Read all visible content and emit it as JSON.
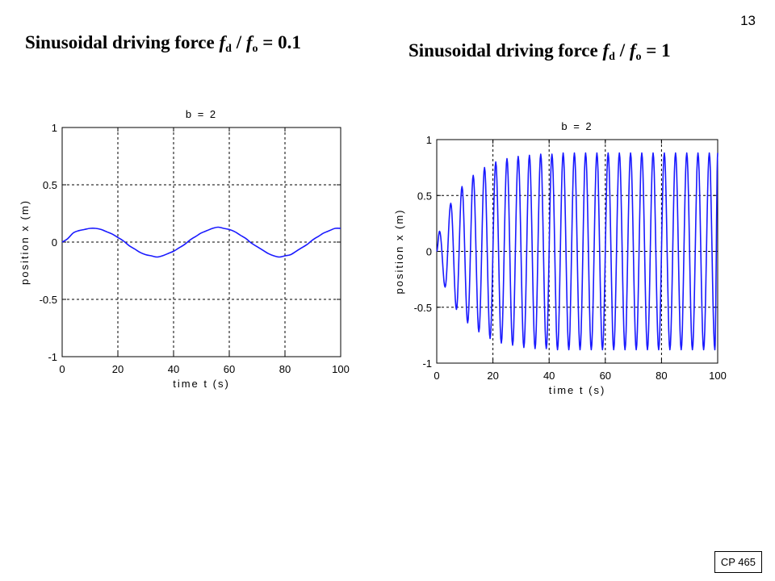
{
  "slide": {
    "page_number": "13",
    "footer": "CP 465"
  },
  "headings": {
    "left": {
      "prefix": "Sinusoidal driving force ",
      "f1": "f",
      "sub1": "d",
      "mid": " / ",
      "f2": "f",
      "sub2": "o",
      "suffix": " = 0.1"
    },
    "right": {
      "prefix": "Sinusoidal driving force ",
      "f1": "f",
      "sub1": "d",
      "mid": " / ",
      "f2": "f",
      "sub2": "o",
      "suffix": " = 1"
    }
  },
  "colors": {
    "curve": "#1a1aff",
    "grid": "#000000",
    "axes": "#000000"
  },
  "chart_data": [
    {
      "type": "line",
      "title": "b = 2",
      "xlabel": "time  t  (s)",
      "ylabel": "position  x  (m)",
      "xlim": [
        0,
        100
      ],
      "ylim": [
        -1,
        1
      ],
      "xticks": [
        0,
        20,
        40,
        60,
        80,
        100
      ],
      "xtick_labels": [
        "0",
        "20",
        "40",
        "60",
        "80",
        "100"
      ],
      "yticks": [
        1,
        0.5,
        0,
        -0.5,
        -1
      ],
      "ytick_labels": [
        "1",
        "0.5",
        "0",
        "-0.5",
        "-1"
      ],
      "grid": true,
      "series": [
        {
          "points": [
            [
              0,
              0
            ],
            [
              2,
              0.03
            ],
            [
              4,
              0.08
            ],
            [
              6,
              0.1
            ],
            [
              8,
              0.11
            ],
            [
              10,
              0.12
            ],
            [
              12,
              0.12
            ],
            [
              14,
              0.11
            ],
            [
              16,
              0.09
            ],
            [
              18,
              0.07
            ],
            [
              20,
              0.04
            ],
            [
              22,
              0.01
            ],
            [
              24,
              -0.03
            ],
            [
              26,
              -0.06
            ],
            [
              28,
              -0.09
            ],
            [
              30,
              -0.11
            ],
            [
              32,
              -0.12
            ],
            [
              34,
              -0.13
            ],
            [
              36,
              -0.12
            ],
            [
              38,
              -0.1
            ],
            [
              40,
              -0.08
            ],
            [
              42,
              -0.05
            ],
            [
              44,
              -0.02
            ],
            [
              46,
              0.02
            ],
            [
              48,
              0.05
            ],
            [
              50,
              0.08
            ],
            [
              52,
              0.1
            ],
            [
              54,
              0.12
            ],
            [
              56,
              0.13
            ],
            [
              58,
              0.12
            ],
            [
              60,
              0.11
            ],
            [
              62,
              0.09
            ],
            [
              64,
              0.06
            ],
            [
              66,
              0.03
            ],
            [
              68,
              -0.01
            ],
            [
              70,
              -0.04
            ],
            [
              72,
              -0.07
            ],
            [
              74,
              -0.1
            ],
            [
              76,
              -0.12
            ],
            [
              78,
              -0.13
            ],
            [
              80,
              -0.12
            ],
            [
              82,
              -0.11
            ],
            [
              84,
              -0.08
            ],
            [
              86,
              -0.05
            ],
            [
              88,
              -0.02
            ],
            [
              90,
              0.02
            ],
            [
              92,
              0.05
            ],
            [
              94,
              0.08
            ],
            [
              96,
              0.1
            ],
            [
              98,
              0.12
            ],
            [
              100,
              0.12
            ]
          ]
        }
      ]
    },
    {
      "type": "line",
      "title": "b = 2",
      "xlabel": "time  t  (s)",
      "ylabel": "position  x  (m)",
      "xlim": [
        0,
        100
      ],
      "ylim": [
        -1,
        1
      ],
      "xticks": [
        0,
        20,
        40,
        60,
        80,
        100
      ],
      "xtick_labels": [
        "0",
        "20",
        "40",
        "60",
        "80",
        "100"
      ],
      "yticks": [
        1,
        0.5,
        0,
        -0.5,
        -1
      ],
      "ytick_labels": [
        "1",
        "0.5",
        "0",
        "-0.5",
        "-1"
      ],
      "grid": true,
      "oscillation": {
        "period": 4.0,
        "max_amplitude": 0.88,
        "decay_time": 10,
        "first_peak": 0.18
      },
      "peaks": [
        [
          1.0,
          0.18
        ],
        [
          5.0,
          0.43
        ],
        [
          9.0,
          0.58
        ],
        [
          13.0,
          0.68
        ],
        [
          17.0,
          0.75
        ],
        [
          21.0,
          0.8
        ],
        [
          25.0,
          0.83
        ],
        [
          29.0,
          0.85
        ],
        [
          33.0,
          0.86
        ],
        [
          37.0,
          0.87
        ],
        [
          41.0,
          0.87
        ],
        [
          45.0,
          0.88
        ],
        [
          49.0,
          0.88
        ],
        [
          53.0,
          0.88
        ],
        [
          57.0,
          0.88
        ],
        [
          61.0,
          0.88
        ],
        [
          65.0,
          0.88
        ],
        [
          69.0,
          0.88
        ],
        [
          73.0,
          0.88
        ],
        [
          77.0,
          0.88
        ],
        [
          81.0,
          0.88
        ],
        [
          85.0,
          0.88
        ],
        [
          89.0,
          0.88
        ],
        [
          93.0,
          0.88
        ],
        [
          97.0,
          0.88
        ]
      ],
      "troughs": [
        [
          3.0,
          -0.32
        ],
        [
          7.0,
          -0.52
        ],
        [
          11.0,
          -0.64
        ],
        [
          15.0,
          -0.72
        ],
        [
          19.0,
          -0.78
        ],
        [
          23.0,
          -0.82
        ],
        [
          27.0,
          -0.84
        ],
        [
          31.0,
          -0.86
        ],
        [
          35.0,
          -0.87
        ],
        [
          39.0,
          -0.87
        ],
        [
          43.0,
          -0.88
        ],
        [
          47.0,
          -0.88
        ],
        [
          51.0,
          -0.88
        ],
        [
          55.0,
          -0.88
        ],
        [
          59.0,
          -0.88
        ],
        [
          63.0,
          -0.88
        ],
        [
          67.0,
          -0.88
        ],
        [
          71.0,
          -0.88
        ],
        [
          75.0,
          -0.88
        ],
        [
          79.0,
          -0.88
        ],
        [
          83.0,
          -0.88
        ],
        [
          87.0,
          -0.88
        ],
        [
          91.0,
          -0.88
        ],
        [
          95.0,
          -0.88
        ],
        [
          99.0,
          -0.88
        ]
      ]
    }
  ]
}
